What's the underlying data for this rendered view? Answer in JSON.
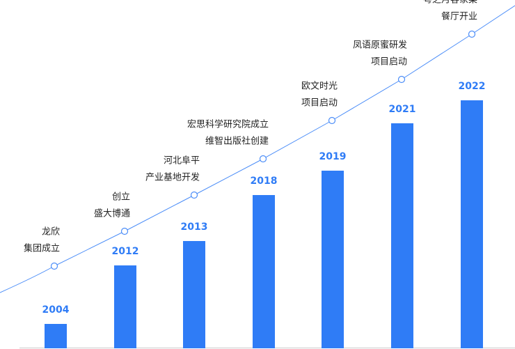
{
  "chart_data": {
    "type": "bar",
    "categories": [
      "2004",
      "2012",
      "2013",
      "2018",
      "2019",
      "2021",
      "2022"
    ],
    "values": [
      35,
      119,
      154,
      220,
      255,
      323,
      356
    ],
    "color": "#2f7cf6",
    "milestones": [
      [
        "龙欣",
        "集团成立"
      ],
      [
        "创立",
        "盛大博通"
      ],
      [
        "河北阜平",
        "产业基地开发"
      ],
      [
        "宏思科学研究院成立",
        "维智出版社创建"
      ],
      [
        "欧文时光",
        "项目启动"
      ],
      [
        "凤语原蜜研发",
        "项目启动"
      ],
      [
        "粤之月客家菜",
        "餐厅开业"
      ]
    ]
  }
}
